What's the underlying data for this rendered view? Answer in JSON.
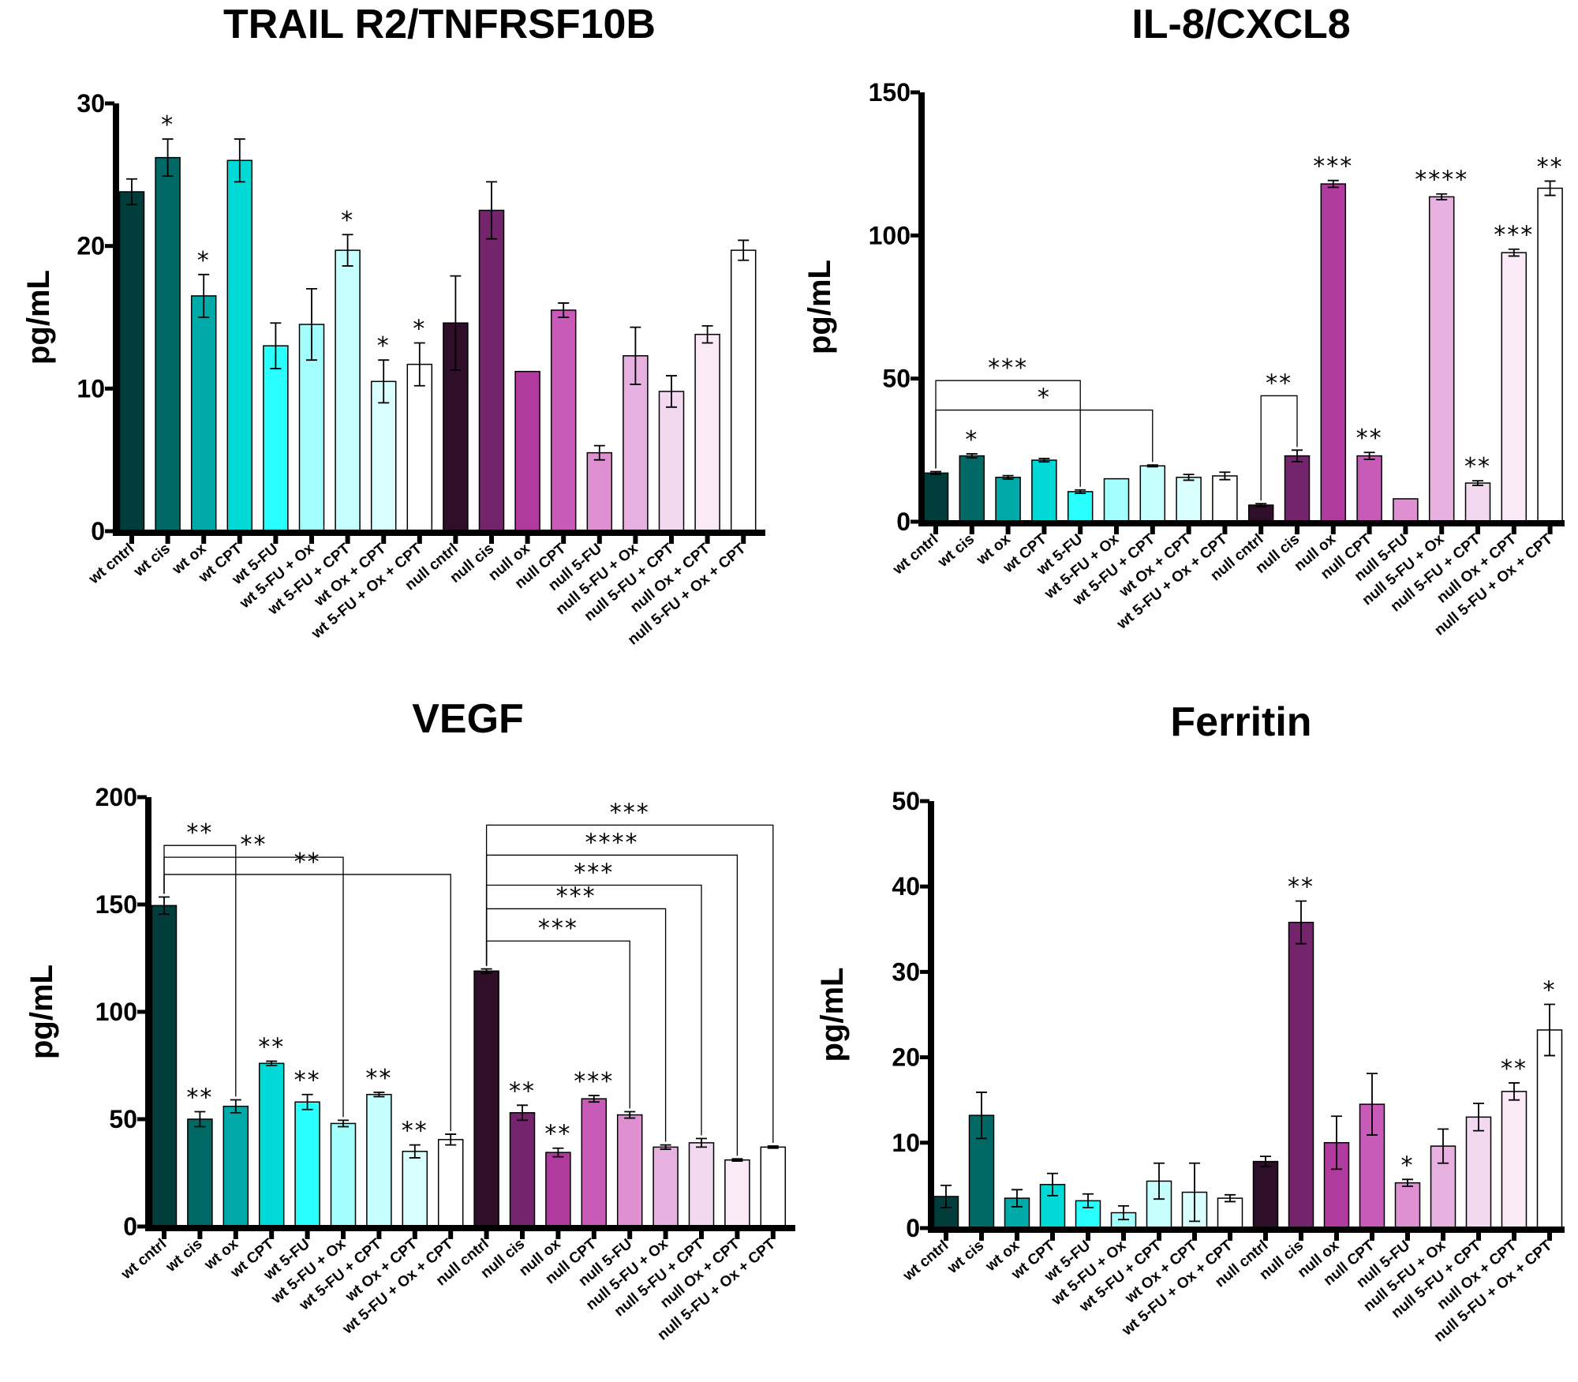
{
  "categories": [
    "wt cntrl",
    "wt cis",
    "wt ox",
    "wt CPT",
    "wt 5-FU",
    "wt 5-FU + Ox",
    "wt 5-FU + CPT",
    "wt Ox + CPT",
    "wt 5-FU + Ox + CPT",
    "null cntrl",
    "null cis",
    "null ox",
    "null CPT",
    "null 5-FU",
    "null 5-FU + Ox",
    "null 5-FU + CPT",
    "null Ox + CPT",
    "null 5-FU + Ox + CPT"
  ],
  "colors": [
    "#003d3b",
    "#006966",
    "#00aaa8",
    "#00d9d6",
    "#29fffd",
    "#a3fffd",
    "#c6fffd",
    "#d9fffe",
    "#ffffff",
    "#2e0e29",
    "#73246a",
    "#b03a9e",
    "#c85ab8",
    "#de90d0",
    "#e6b0e0",
    "#f3d9ef",
    "#faeaf7",
    "#ffffff"
  ],
  "chart_data": [
    {
      "type": "bar",
      "title": "TRAIL R2/TNFRSF10B",
      "ylabel": "pg/mL",
      "ylim": [
        0,
        30
      ],
      "yticks": [
        "0",
        "10",
        "20",
        "30"
      ],
      "values": [
        23.8,
        26.2,
        16.5,
        26.0,
        13.0,
        14.5,
        19.7,
        10.5,
        11.7,
        14.6,
        22.5,
        11.2,
        15.5,
        5.5,
        12.3,
        9.8,
        13.8,
        19.7
      ],
      "errors": [
        0.9,
        1.3,
        1.5,
        1.5,
        1.6,
        2.5,
        1.1,
        1.5,
        1.5,
        3.3,
        2.0,
        0,
        0.5,
        0.5,
        2.0,
        1.1,
        0.6,
        0.7
      ],
      "significance": [
        "",
        "*",
        "*",
        "",
        "",
        "",
        "*",
        "*",
        "*",
        "",
        "",
        "",
        "",
        "",
        "",
        "",
        "",
        ""
      ],
      "brackets": []
    },
    {
      "type": "bar",
      "title": "IL-8/CXCL8",
      "ylabel": "pg/mL",
      "ylim": [
        0,
        150
      ],
      "yticks": [
        "0",
        "50",
        "100",
        "150"
      ],
      "values": [
        17,
        23,
        15.5,
        21.5,
        10.5,
        15,
        19.5,
        15.5,
        16,
        5.8,
        23,
        118,
        23,
        8,
        113.5,
        13.5,
        94,
        116.5
      ],
      "errors": [
        0.5,
        0.7,
        0.6,
        0.6,
        0.6,
        0,
        0.3,
        1.0,
        1.3,
        0.5,
        2.0,
        1.2,
        1.2,
        0,
        1.0,
        0.8,
        1.2,
        2.5
      ],
      "significance": [
        "",
        "*",
        "",
        "",
        "",
        "",
        "",
        "",
        "",
        "",
        "",
        "***",
        "**",
        "",
        "****",
        "**",
        "***",
        "**"
      ],
      "brackets": [
        {
          "from": 0,
          "to": 4,
          "y": 49.3,
          "label": "***"
        },
        {
          "from": 0,
          "to": 6,
          "y": 39,
          "label": "*"
        },
        {
          "from": 9,
          "to": 10,
          "y": 44,
          "label": "**"
        }
      ]
    },
    {
      "type": "bar",
      "title": "VEGF",
      "ylabel": "pg/mL",
      "ylim": [
        0,
        200
      ],
      "yticks": [
        "0",
        "50",
        "100",
        "150",
        "200"
      ],
      "values": [
        149.5,
        50,
        56,
        76,
        58,
        48,
        61.5,
        35,
        40.5,
        119,
        53,
        34.5,
        59.5,
        52,
        37,
        39,
        31,
        37
      ],
      "errors": [
        4,
        3.5,
        3,
        1,
        3.5,
        1.5,
        1,
        3,
        2.5,
        1,
        3.5,
        2,
        1.5,
        1.5,
        1,
        2,
        0.5,
        0.5
      ],
      "significance": [
        "",
        "**",
        "",
        "**",
        "**",
        "",
        "**",
        "**",
        "",
        "",
        "**",
        "**",
        "***",
        "",
        "",
        "",
        "",
        ""
      ],
      "brackets": [
        {
          "from": 0,
          "to": 2,
          "y": 177.5,
          "label": "**"
        },
        {
          "from": 0,
          "to": 5,
          "y": 172,
          "label": "**"
        },
        {
          "from": 0,
          "to": 8,
          "y": 164,
          "label": "**"
        },
        {
          "from": 9,
          "to": 13,
          "y": 133,
          "label": "***"
        },
        {
          "from": 9,
          "to": 14,
          "y": 148,
          "label": "***"
        },
        {
          "from": 9,
          "to": 15,
          "y": 159,
          "label": "***"
        },
        {
          "from": 9,
          "to": 16,
          "y": 173,
          "label": "****"
        },
        {
          "from": 9,
          "to": 17,
          "y": 187,
          "label": "***"
        }
      ]
    },
    {
      "type": "bar",
      "title": "Ferritin",
      "ylabel": "pg/mL",
      "ylim": [
        0,
        50
      ],
      "yticks": [
        "0",
        "10",
        "20",
        "30",
        "40",
        "50"
      ],
      "values": [
        3.7,
        13.2,
        3.5,
        5.1,
        3.2,
        1.8,
        5.5,
        4.2,
        3.5,
        7.8,
        35.8,
        10,
        14.5,
        5.3,
        9.6,
        13,
        16,
        23.2
      ],
      "errors": [
        1.3,
        2.7,
        1.0,
        1.3,
        0.8,
        0.8,
        2.1,
        3.4,
        0.4,
        0.6,
        2.5,
        3.1,
        3.6,
        0.4,
        2.0,
        1.6,
        1.0,
        3.0
      ],
      "significance": [
        "",
        "",
        "",
        "",
        "",
        "",
        "",
        "",
        "",
        "",
        "**",
        "",
        "",
        "*",
        "",
        "",
        "**",
        "*"
      ],
      "brackets": []
    }
  ]
}
